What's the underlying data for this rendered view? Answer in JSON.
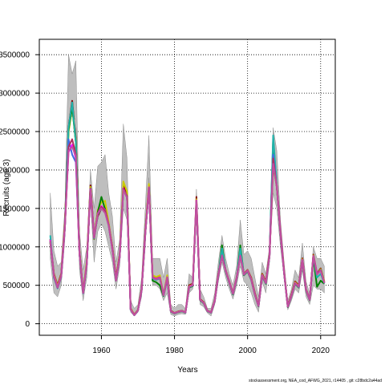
{
  "chart_data": {
    "type": "line",
    "title": "",
    "xlabel": "Years",
    "ylabel": "Recruits (age 3)",
    "xlim": [
      1943,
      2024
    ],
    "ylim": [
      -150000,
      3700000
    ],
    "xticks": [
      1960,
      1980,
      2000,
      2020
    ],
    "yticks": [
      0,
      500000,
      1000000,
      1500000,
      2000000,
      2500000,
      3000000,
      3500000
    ],
    "ytick_labels": [
      "0",
      "500000",
      "1000000",
      "1500000",
      "2000000",
      "2500000",
      "3000000",
      "3500000"
    ],
    "grid": true,
    "grid_style": "dotted",
    "legend": "none",
    "x": [
      1946,
      1947,
      1948,
      1949,
      1950,
      1951,
      1952,
      1953,
      1954,
      1955,
      1956,
      1957,
      1958,
      1959,
      1960,
      1961,
      1962,
      1963,
      1964,
      1965,
      1966,
      1967,
      1968,
      1969,
      1970,
      1971,
      1972,
      1973,
      1974,
      1975,
      1976,
      1977,
      1978,
      1979,
      1980,
      1981,
      1982,
      1983,
      1984,
      1985,
      1986,
      1987,
      1988,
      1989,
      1990,
      1991,
      1992,
      1993,
      1994,
      1995,
      1996,
      1997,
      1998,
      1999,
      2000,
      2001,
      2002,
      2003,
      2004,
      2005,
      2006,
      2007,
      2008,
      2009,
      2010,
      2011,
      2012,
      2013,
      2014,
      2015,
      2016,
      2017,
      2018,
      2019,
      2020,
      2021
    ],
    "band": {
      "name": "confidence interval",
      "color": "#bebebe",
      "lower": [
        850000,
        400000,
        350000,
        500000,
        1100000,
        2650000,
        2700000,
        2650000,
        700000,
        300000,
        600000,
        1600000,
        800000,
        1200000,
        1300000,
        1200000,
        1000000,
        800000,
        450000,
        750000,
        1500000,
        1350000,
        150000,
        100000,
        150000,
        350000,
        1000000,
        1900000,
        500000,
        500000,
        450000,
        300000,
        400000,
        120000,
        100000,
        120000,
        130000,
        120000,
        400000,
        450000,
        1500000,
        250000,
        220000,
        140000,
        100000,
        250000,
        550000,
        800000,
        600000,
        450000,
        320000,
        500000,
        750000,
        550000,
        500000,
        400000,
        250000,
        150000,
        550000,
        400000,
        800000,
        1700000,
        1500000,
        1000000,
        600000,
        180000,
        300000,
        450000,
        400000,
        700000,
        350000,
        250000,
        500000,
        450000,
        450000,
        400000
      ],
      "upper": [
        1700000,
        950000,
        750000,
        800000,
        1500000,
        3500000,
        3250000,
        3420000,
        1200000,
        700000,
        1000000,
        2000000,
        1500000,
        2050000,
        2100000,
        2200000,
        1700000,
        1400000,
        800000,
        1100000,
        2600000,
        2150000,
        300000,
        200000,
        250000,
        600000,
        1500000,
        2450000,
        850000,
        850000,
        850000,
        600000,
        850000,
        250000,
        200000,
        250000,
        250000,
        200000,
        650000,
        600000,
        1750000,
        450000,
        350000,
        200000,
        200000,
        400000,
        800000,
        1150000,
        850000,
        650000,
        500000,
        750000,
        1350000,
        900000,
        950000,
        850000,
        600000,
        350000,
        800000,
        650000,
        1000000,
        2550000,
        2250000,
        1350000,
        800000,
        300000,
        450000,
        700000,
        600000,
        1050000,
        550000,
        400000,
        1000000,
        850000,
        850000,
        750000
      ]
    },
    "series": [
      {
        "name": "",
        "color": "#800000",
        "values": [
          1100000,
          650000,
          500000,
          650000,
          1300000,
          2550000,
          2900000,
          2400000,
          950000,
          420000,
          800000,
          1800000,
          1150000,
          1400000,
          1500000,
          1500000,
          1300000,
          1000000,
          600000,
          900000,
          1800000,
          1700000,
          200000,
          120000,
          180000,
          450000,
          1200000,
          1800000,
          600000,
          580000,
          600000,
          380000,
          600000,
          170000,
          140000,
          160000,
          170000,
          150000,
          500000,
          520000,
          1650000,
          320000,
          280000,
          170000,
          150000,
          300000,
          650000,
          900000,
          700000,
          550000,
          400000,
          600000,
          900000,
          650000,
          700000,
          600000,
          400000,
          240000,
          650000,
          550000,
          900000,
          2100000,
          1800000,
          1200000,
          680000,
          230000,
          380000,
          550000,
          500000,
          850000,
          450000,
          320000,
          900000,
          650000,
          720000,
          550000
        ]
      },
      {
        "name": "",
        "color": "#808000",
        "values": [
          1050000,
          630000,
          480000,
          620000,
          1270000,
          2500000,
          2850000,
          2380000,
          920000,
          400000,
          790000,
          1750000,
          1100000,
          1430000,
          1520000,
          1470000,
          1290000,
          980000,
          580000,
          880000,
          1750000,
          1650000,
          190000,
          115000,
          175000,
          440000,
          1180000,
          1780000,
          620000,
          600000,
          620000,
          370000,
          620000,
          160000,
          135000,
          155000,
          165000,
          145000,
          480000,
          500000,
          1600000,
          310000,
          270000,
          165000,
          145000,
          290000,
          630000,
          880000,
          690000,
          540000,
          390000,
          590000,
          890000,
          640000,
          690000,
          580000,
          380000,
          230000,
          630000,
          530000,
          880000,
          2050000,
          1780000,
          1180000,
          660000,
          220000,
          360000,
          530000,
          480000,
          830000,
          440000,
          310000,
          880000,
          640000,
          700000,
          540000
        ]
      },
      {
        "name": "",
        "color": "#cccc00",
        "values": [
          1080000,
          640000,
          490000,
          640000,
          1290000,
          2480000,
          2830000,
          2350000,
          930000,
          410000,
          820000,
          1780000,
          1130000,
          1480000,
          1580000,
          1600000,
          1310000,
          990000,
          590000,
          890000,
          1850000,
          1720000,
          195000,
          118000,
          178000,
          445000,
          1190000,
          1820000,
          630000,
          610000,
          630000,
          375000,
          630000,
          165000,
          138000,
          158000,
          168000,
          148000,
          490000,
          510000,
          1620000,
          315000,
          275000,
          168000,
          148000,
          295000,
          640000,
          890000,
          695000,
          545000,
          395000,
          595000,
          895000,
          645000,
          695000,
          590000,
          390000,
          235000,
          640000,
          540000,
          890000,
          2080000,
          1790000,
          1190000,
          670000,
          225000,
          370000,
          540000,
          490000,
          840000,
          445000,
          315000,
          890000,
          645000,
          710000,
          545000
        ]
      },
      {
        "name": "",
        "color": "#008000",
        "values": [
          1060000,
          620000,
          470000,
          630000,
          1250000,
          2520000,
          2820000,
          2360000,
          910000,
          400000,
          780000,
          1760000,
          1120000,
          1450000,
          1650000,
          1490000,
          1280000,
          970000,
          570000,
          870000,
          1760000,
          1660000,
          185000,
          112000,
          172000,
          435000,
          1170000,
          1770000,
          560000,
          540000,
          500000,
          360000,
          580000,
          155000,
          132000,
          150000,
          162000,
          142000,
          470000,
          490000,
          1580000,
          305000,
          265000,
          162000,
          142000,
          285000,
          620000,
          1020000,
          680000,
          530000,
          380000,
          580000,
          1020000,
          630000,
          680000,
          570000,
          375000,
          225000,
          620000,
          520000,
          870000,
          2400000,
          1770000,
          1170000,
          650000,
          215000,
          355000,
          520000,
          470000,
          820000,
          430000,
          305000,
          870000,
          480000,
          560000,
          520000
        ]
      },
      {
        "name": "",
        "color": "#20b2aa",
        "values": [
          1150000,
          600000,
          460000,
          610000,
          1240000,
          2550000,
          2880000,
          2350000,
          900000,
          395000,
          770000,
          1740000,
          1110000,
          1420000,
          1500000,
          1460000,
          1270000,
          960000,
          560000,
          860000,
          1740000,
          1640000,
          180000,
          110000,
          170000,
          430000,
          1160000,
          1760000,
          590000,
          570000,
          590000,
          365000,
          590000,
          158000,
          134000,
          152000,
          164000,
          144000,
          475000,
          495000,
          1590000,
          308000,
          268000,
          164000,
          144000,
          288000,
          625000,
          980000,
          685000,
          535000,
          385000,
          585000,
          980000,
          635000,
          685000,
          575000,
          378000,
          228000,
          625000,
          525000,
          875000,
          2450000,
          1790000,
          1175000,
          655000,
          218000,
          358000,
          525000,
          475000,
          825000,
          435000,
          308000,
          875000,
          600000,
          650000,
          525000
        ]
      },
      {
        "name": "",
        "color": "#4169e1",
        "values": [
          1070000,
          610000,
          465000,
          615000,
          1245000,
          2400000,
          2200000,
          2100000,
          905000,
          398000,
          775000,
          1745000,
          1115000,
          1425000,
          1510000,
          1465000,
          1275000,
          965000,
          565000,
          865000,
          1745000,
          1645000,
          182000,
          111000,
          171000,
          432000,
          1165000,
          1765000,
          595000,
          575000,
          595000,
          368000,
          595000,
          159000,
          135000,
          153000,
          165000,
          145000,
          478000,
          498000,
          1595000,
          310000,
          270000,
          165000,
          145000,
          290000,
          628000,
          885000,
          688000,
          538000,
          388000,
          588000,
          885000,
          638000,
          688000,
          578000,
          380000,
          230000,
          628000,
          528000,
          878000,
          2200000,
          1785000,
          1178000,
          658000,
          220000,
          360000,
          528000,
          478000,
          828000,
          438000,
          310000,
          878000,
          640000,
          700000,
          528000
        ]
      },
      {
        "name": "",
        "color": "#ff00ff",
        "values": [
          1090000,
          625000,
          475000,
          625000,
          1260000,
          2230000,
          2330000,
          2150000,
          915000,
          402000,
          785000,
          1755000,
          1125000,
          1435000,
          1530000,
          1480000,
          1285000,
          975000,
          575000,
          875000,
          1760000,
          1655000,
          188000,
          114000,
          174000,
          438000,
          1175000,
          1775000,
          605000,
          585000,
          605000,
          372000,
          605000,
          162000,
          137000,
          155000,
          167000,
          147000,
          485000,
          505000,
          1605000,
          313000,
          273000,
          167000,
          147000,
          293000,
          635000,
          888000,
          692000,
          542000,
          392000,
          592000,
          888000,
          642000,
          692000,
          582000,
          383000,
          232000,
          632000,
          532000,
          882000,
          2100000,
          1788000,
          1182000,
          662000,
          222000,
          364000,
          532000,
          482000,
          832000,
          441000,
          312000,
          882000,
          660000,
          690000,
          532000
        ]
      },
      {
        "name": "",
        "color": "#b03060",
        "values": [
          1075000,
          615000,
          468000,
          618000,
          1248000,
          2300000,
          2400000,
          2200000,
          908000,
          400000,
          778000,
          1748000,
          1118000,
          1428000,
          1520000,
          1470000,
          1278000,
          968000,
          568000,
          868000,
          1752000,
          1650000,
          184000,
          112000,
          172000,
          435000,
          1168000,
          1768000,
          600000,
          580000,
          600000,
          370000,
          600000,
          160000,
          136000,
          154000,
          166000,
          146000,
          482000,
          500000,
          1600000,
          311000,
          271000,
          166000,
          146000,
          291000,
          630000,
          886000,
          690000,
          540000,
          390000,
          590000,
          886000,
          640000,
          690000,
          580000,
          381000,
          231000,
          630000,
          530000,
          880000,
          2150000,
          1786000,
          1180000,
          660000,
          221000,
          362000,
          530000,
          480000,
          830000,
          440000,
          311000,
          880000,
          650000,
          695000,
          530000
        ]
      },
      {
        "name": "",
        "color": "#c0509f",
        "values": [
          1080000,
          618000,
          470000,
          620000,
          1250000,
          2250000,
          2300000,
          2180000,
          910000,
          401000,
          780000,
          1750000,
          1120000,
          1430000,
          1500000,
          1440000,
          1270000,
          960000,
          560000,
          860000,
          1740000,
          1640000,
          185000,
          113000,
          173000,
          436000,
          1170000,
          1770000,
          598000,
          578000,
          598000,
          369000,
          598000,
          160000,
          136000,
          154000,
          166000,
          146000,
          480000,
          500000,
          1600000,
          312000,
          272000,
          166000,
          146000,
          292000,
          632000,
          886000,
          690000,
          540000,
          390000,
          590000,
          886000,
          640000,
          690000,
          580000,
          381000,
          231000,
          630000,
          530000,
          880000,
          2080000,
          1780000,
          1180000,
          660000,
          221000,
          362000,
          530000,
          480000,
          830000,
          440000,
          311000,
          880000,
          640000,
          690000,
          530000
        ]
      }
    ]
  },
  "footnote": "stockassessment.org,  NEA_cod_AFWG_2021,  r14405 ,  git: c28bdc2a44ad"
}
